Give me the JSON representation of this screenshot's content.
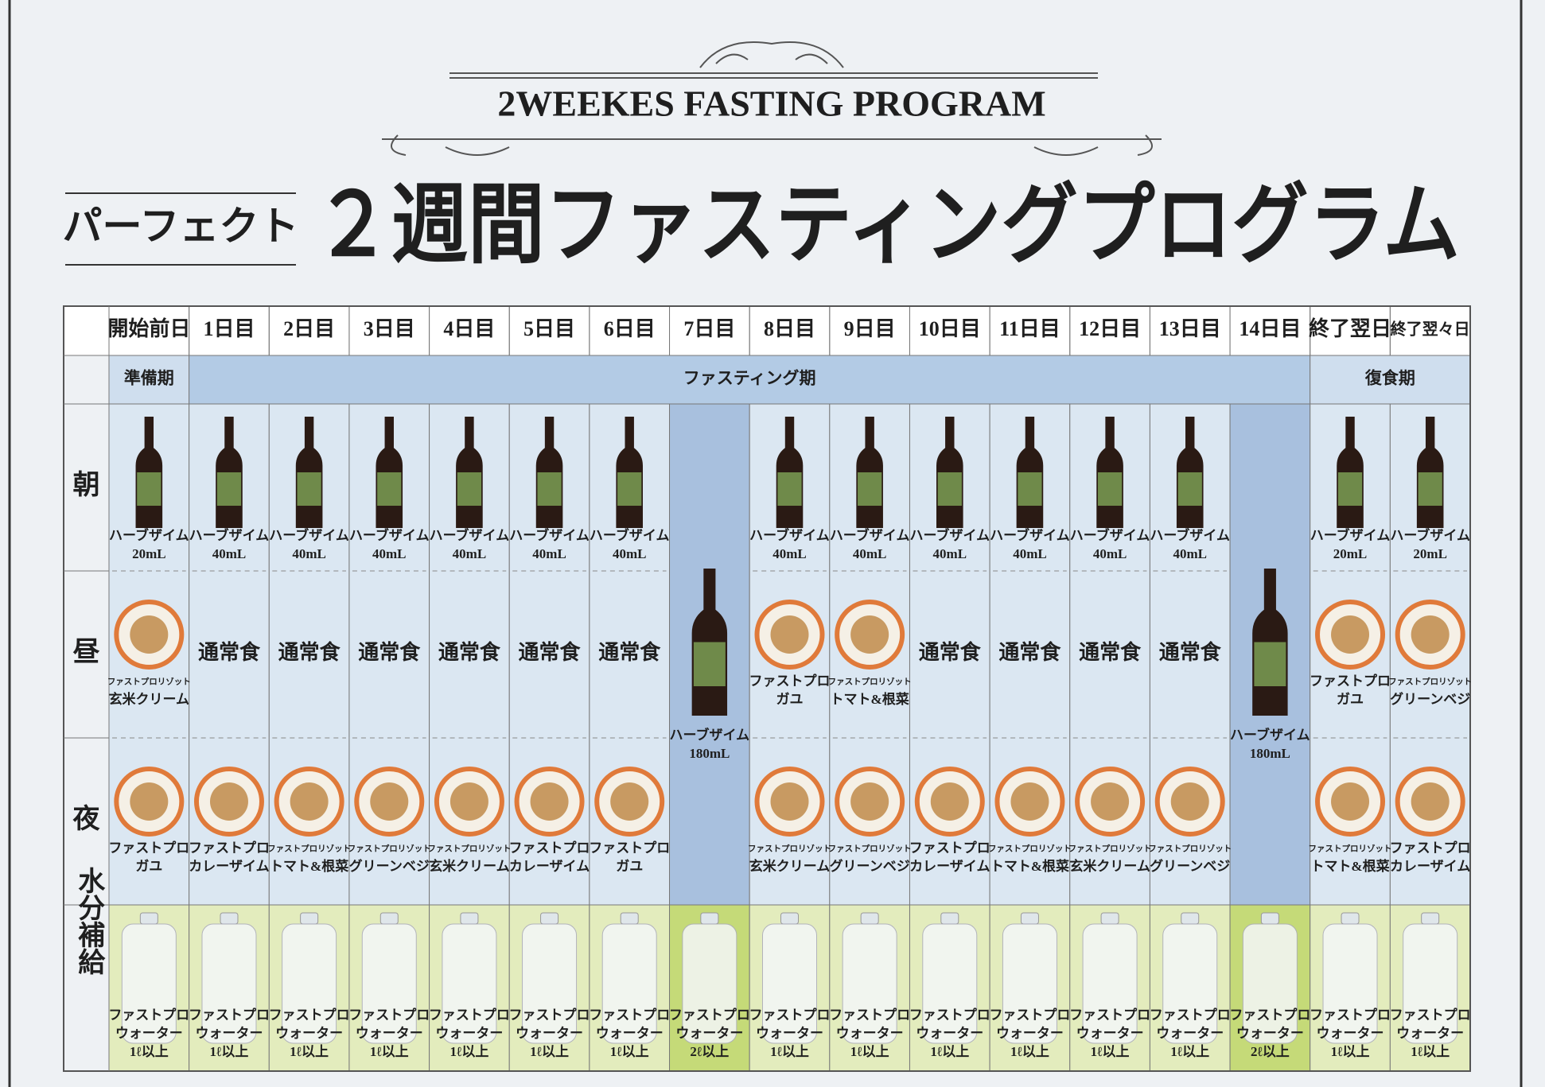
{
  "header": {
    "subtitle": "2WEEKES FASTING PROGRAM",
    "prefix": "パーフェクト",
    "title": "２週間ファスティングプログラム"
  },
  "table": {
    "row_labels": [
      "朝",
      "昼",
      "夜",
      "水分補給"
    ],
    "phases": [
      "準備期",
      "ファスティング期",
      "復食期"
    ],
    "columns": [
      {
        "day": "開始前日",
        "morning": [
          "ハーブザイム",
          "20mL"
        ],
        "lunch": [
          "ファストプロリゾット",
          "玄米クリーム"
        ],
        "dinner": [
          "ファストプロ",
          "ガユ"
        ],
        "water": [
          "ファストプロ",
          "ウォーター",
          "1ℓ以上"
        ]
      },
      {
        "day": "1日目",
        "morning": [
          "ハーブザイム",
          "40mL"
        ],
        "lunch": [
          "通常食"
        ],
        "dinner": [
          "ファストプロ",
          "カレーザイム"
        ],
        "water": [
          "ファストプロ",
          "ウォーター",
          "1ℓ以上"
        ]
      },
      {
        "day": "2日目",
        "morning": [
          "ハーブザイム",
          "40mL"
        ],
        "lunch": [
          "通常食"
        ],
        "dinner": [
          "ファストプロリゾット",
          "トマト&根菜"
        ],
        "water": [
          "ファストプロ",
          "ウォーター",
          "1ℓ以上"
        ]
      },
      {
        "day": "3日目",
        "morning": [
          "ハーブザイム",
          "40mL"
        ],
        "lunch": [
          "通常食"
        ],
        "dinner": [
          "ファストプロリゾット",
          "グリーンベジ"
        ],
        "water": [
          "ファストプロ",
          "ウォーター",
          "1ℓ以上"
        ]
      },
      {
        "day": "4日目",
        "morning": [
          "ハーブザイム",
          "40mL"
        ],
        "lunch": [
          "通常食"
        ],
        "dinner": [
          "ファストプロリゾット",
          "玄米クリーム"
        ],
        "water": [
          "ファストプロ",
          "ウォーター",
          "1ℓ以上"
        ]
      },
      {
        "day": "5日目",
        "morning": [
          "ハーブザイム",
          "40mL"
        ],
        "lunch": [
          "通常食"
        ],
        "dinner": [
          "ファストプロ",
          "カレーザイム"
        ],
        "water": [
          "ファストプロ",
          "ウォーター",
          "1ℓ以上"
        ]
      },
      {
        "day": "6日目",
        "morning": [
          "ハーブザイム",
          "40mL"
        ],
        "lunch": [
          "通常食"
        ],
        "dinner": [
          "ファストプロ",
          "ガユ"
        ],
        "water": [
          "ファストプロ",
          "ウォーター",
          "1ℓ以上"
        ]
      },
      {
        "day": "7日目",
        "all_day": [
          "ハーブザイム",
          "180mL"
        ],
        "water": [
          "ファストプロ",
          "ウォーター",
          "2ℓ以上"
        ]
      },
      {
        "day": "8日目",
        "morning": [
          "ハーブザイム",
          "40mL"
        ],
        "lunch": [
          "ファストプロ",
          "ガユ"
        ],
        "dinner": [
          "ファストプロリゾット",
          "玄米クリーム"
        ],
        "water": [
          "ファストプロ",
          "ウォーター",
          "1ℓ以上"
        ]
      },
      {
        "day": "9日目",
        "morning": [
          "ハーブザイム",
          "40mL"
        ],
        "lunch": [
          "ファストプロリゾット",
          "トマト&根菜"
        ],
        "dinner": [
          "ファストプロリゾット",
          "グリーンベジ"
        ],
        "water": [
          "ファストプロ",
          "ウォーター",
          "1ℓ以上"
        ]
      },
      {
        "day": "10日目",
        "morning": [
          "ハーブザイム",
          "40mL"
        ],
        "lunch": [
          "通常食"
        ],
        "dinner": [
          "ファストプロ",
          "カレーザイム"
        ],
        "water": [
          "ファストプロ",
          "ウォーター",
          "1ℓ以上"
        ]
      },
      {
        "day": "11日目",
        "morning": [
          "ハーブザイム",
          "40mL"
        ],
        "lunch": [
          "通常食"
        ],
        "dinner": [
          "ファストプロリゾット",
          "トマト&根菜"
        ],
        "water": [
          "ファストプロ",
          "ウォーター",
          "1ℓ以上"
        ]
      },
      {
        "day": "12日目",
        "morning": [
          "ハーブザイム",
          "40mL"
        ],
        "lunch": [
          "通常食"
        ],
        "dinner": [
          "ファストプロリゾット",
          "玄米クリーム"
        ],
        "water": [
          "ファストプロ",
          "ウォーター",
          "1ℓ以上"
        ]
      },
      {
        "day": "13日目",
        "morning": [
          "ハーブザイム",
          "40mL"
        ],
        "lunch": [
          "通常食"
        ],
        "dinner": [
          "ファストプロリゾット",
          "グリーンベジ"
        ],
        "water": [
          "ファストプロ",
          "ウォーター",
          "1ℓ以上"
        ]
      },
      {
        "day": "14日目",
        "all_day": [
          "ハーブザイム",
          "180mL"
        ],
        "water": [
          "ファストプロ",
          "ウォーター",
          "2ℓ以上"
        ]
      },
      {
        "day": "終了翌日",
        "morning": [
          "ハーブザイム",
          "20mL"
        ],
        "lunch": [
          "ファストプロ",
          "ガユ"
        ],
        "dinner": [
          "ファストプロリゾット",
          "トマト&根菜"
        ],
        "water": [
          "ファストプロ",
          "ウォーター",
          "1ℓ以上"
        ]
      },
      {
        "day": "終了翌々日",
        "morning": [
          "ハーブザイム",
          "20mL"
        ],
        "lunch": [
          "ファストプロリゾット",
          "グリーンベジ"
        ],
        "dinner": [
          "ファストプロ",
          "カレーザイム"
        ],
        "water": [
          "ファストプロ",
          "ウォーター",
          "1ℓ以上"
        ]
      }
    ]
  }
}
